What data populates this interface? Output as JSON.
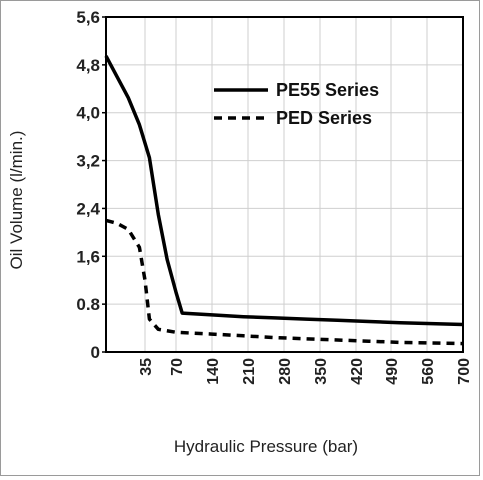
{
  "chart_data": {
    "type": "line",
    "xlabel": "Hydraulic Pressure (bar)",
    "ylabel": "Oil Volume (l/min.)",
    "x_ticks": [
      "35",
      "70",
      "140",
      "210",
      "280",
      "350",
      "420",
      "490",
      "560",
      "700"
    ],
    "y_ticks": [
      "0",
      "0.8",
      "1,6",
      "2,4",
      "3,2",
      "4,0",
      "4,8",
      "5,6"
    ],
    "ylim": [
      0,
      5.6
    ],
    "grid": true,
    "legend_position": "top-right",
    "series": [
      {
        "name": "PE55 Series",
        "style": "solid",
        "color": "#000000",
        "points": [
          [
            0,
            4.95
          ],
          [
            10,
            4.6
          ],
          [
            20,
            4.25
          ],
          [
            30,
            3.8
          ],
          [
            40,
            3.25
          ],
          [
            50,
            2.3
          ],
          [
            60,
            1.55
          ],
          [
            70,
            1.0
          ],
          [
            82,
            0.65
          ],
          [
            140,
            0.62
          ],
          [
            210,
            0.59
          ],
          [
            280,
            0.57
          ],
          [
            350,
            0.55
          ],
          [
            420,
            0.53
          ],
          [
            490,
            0.51
          ],
          [
            560,
            0.49
          ],
          [
            700,
            0.46
          ]
        ]
      },
      {
        "name": "PED Series",
        "style": "dashed",
        "color": "#000000",
        "points": [
          [
            0,
            2.2
          ],
          [
            10,
            2.15
          ],
          [
            20,
            2.05
          ],
          [
            30,
            1.75
          ],
          [
            35,
            1.2
          ],
          [
            40,
            0.55
          ],
          [
            50,
            0.38
          ],
          [
            70,
            0.33
          ],
          [
            140,
            0.3
          ],
          [
            210,
            0.27
          ],
          [
            280,
            0.24
          ],
          [
            350,
            0.22
          ],
          [
            420,
            0.2
          ],
          [
            490,
            0.18
          ],
          [
            560,
            0.16
          ],
          [
            700,
            0.14
          ]
        ]
      }
    ]
  }
}
